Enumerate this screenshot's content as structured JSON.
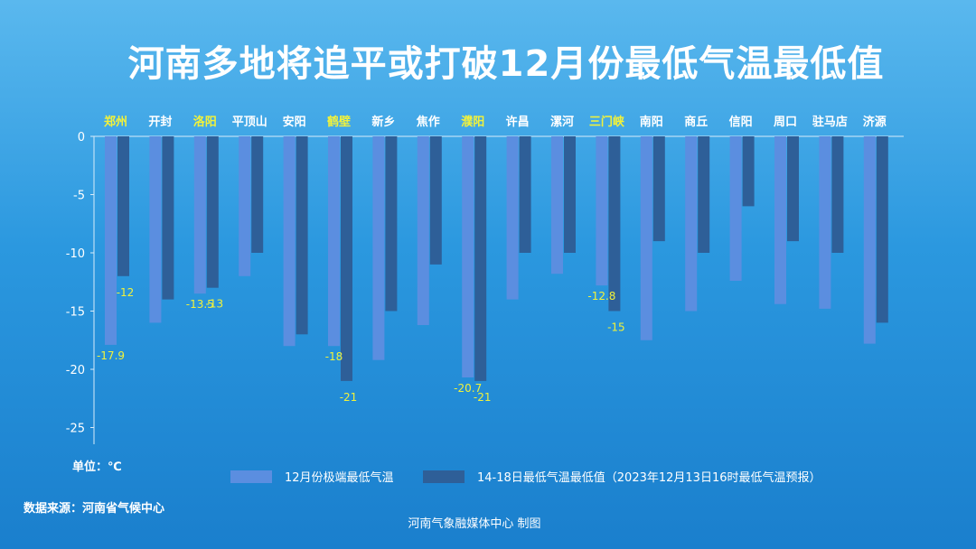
{
  "header": {
    "title": "河南多地将追平或打破12月份最低气温最低值"
  },
  "footer": {
    "unit": "单位：℃",
    "source": "数据来源：河南省气候中心",
    "credit": "河南气象融媒体中心  制图"
  },
  "colors": {
    "series1": "#5b8ee0",
    "series2": "#2e5f98",
    "highlight_label": "#f2f23a",
    "normal_label": "#ffffff",
    "axis": "#d8ecfa"
  },
  "chart_data": {
    "type": "bar",
    "categories": [
      "郑州",
      "开封",
      "洛阳",
      "平顶山",
      "安阳",
      "鹤壁",
      "新乡",
      "焦作",
      "濮阳",
      "许昌",
      "漯河",
      "三门峡",
      "南阳",
      "商丘",
      "信阳",
      "周口",
      "驻马店",
      "济源"
    ],
    "highlighted_categories": [
      "郑州",
      "洛阳",
      "鹤壁",
      "濮阳",
      "三门峡"
    ],
    "series": [
      {
        "name": "12月份极端最低气温",
        "values": [
          -17.9,
          -16,
          -13.5,
          -12,
          -18,
          -18,
          -19.2,
          -16.2,
          -20.7,
          -14,
          -11.8,
          -12.8,
          -17.5,
          -15,
          -12.4,
          -14.4,
          -14.8,
          -17.8
        ]
      },
      {
        "name": "14-18日最低气温最低值（2023年12月13日16时最低气温预报）",
        "values": [
          -12,
          -14,
          -13,
          -10,
          -17,
          -21,
          -15,
          -11,
          -21,
          -10,
          -10,
          -15,
          -9,
          -10,
          -6,
          -9,
          -10,
          -16
        ]
      }
    ],
    "data_labels": [
      {
        "category": "郑州",
        "series1": "-17.9",
        "series2": "-12"
      },
      {
        "category": "洛阳",
        "series1": "-13.5",
        "series2": "-13"
      },
      {
        "category": "鹤壁",
        "series1": "-18",
        "series2": "-21"
      },
      {
        "category": "濮阳",
        "series1": "-20.7",
        "series2": "-21"
      },
      {
        "category": "三门峡",
        "series1": "-12.8",
        "series2": "-15"
      }
    ],
    "y_ticks": [
      "0",
      "-5",
      "-10",
      "-15",
      "-20",
      "-25"
    ],
    "ylim": [
      -25,
      0
    ],
    "legend_position": "bottom",
    "grid": false
  }
}
